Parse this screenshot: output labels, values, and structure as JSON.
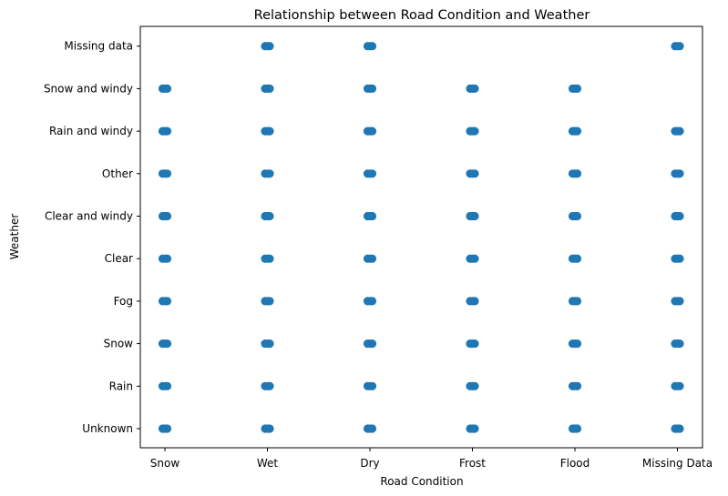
{
  "chart_data": {
    "type": "scatter",
    "title": "Relationship between Road Condition and Weather",
    "xlabel": "Road Condition",
    "ylabel": "Weather",
    "x_categories": [
      "Snow",
      "Wet",
      "Dry",
      "Frost",
      "Flood",
      "Missing Data"
    ],
    "y_categories": [
      "Unknown",
      "Rain",
      "Snow",
      "Fog",
      "Clear",
      "Clear and windy",
      "Other",
      "Rain and windy",
      "Snow and windy",
      "Missing data"
    ],
    "grid": false,
    "legend": "none",
    "marker_color": "#1f77b4",
    "points": [
      {
        "x": "Snow",
        "y": "Unknown"
      },
      {
        "x": "Snow",
        "y": "Rain"
      },
      {
        "x": "Snow",
        "y": "Snow"
      },
      {
        "x": "Snow",
        "y": "Fog"
      },
      {
        "x": "Snow",
        "y": "Clear"
      },
      {
        "x": "Snow",
        "y": "Clear and windy"
      },
      {
        "x": "Snow",
        "y": "Other"
      },
      {
        "x": "Snow",
        "y": "Rain and windy"
      },
      {
        "x": "Snow",
        "y": "Snow and windy"
      },
      {
        "x": "Wet",
        "y": "Unknown"
      },
      {
        "x": "Wet",
        "y": "Rain"
      },
      {
        "x": "Wet",
        "y": "Snow"
      },
      {
        "x": "Wet",
        "y": "Fog"
      },
      {
        "x": "Wet",
        "y": "Clear"
      },
      {
        "x": "Wet",
        "y": "Clear and windy"
      },
      {
        "x": "Wet",
        "y": "Other"
      },
      {
        "x": "Wet",
        "y": "Rain and windy"
      },
      {
        "x": "Wet",
        "y": "Snow and windy"
      },
      {
        "x": "Wet",
        "y": "Missing data"
      },
      {
        "x": "Dry",
        "y": "Unknown"
      },
      {
        "x": "Dry",
        "y": "Rain"
      },
      {
        "x": "Dry",
        "y": "Snow"
      },
      {
        "x": "Dry",
        "y": "Fog"
      },
      {
        "x": "Dry",
        "y": "Clear"
      },
      {
        "x": "Dry",
        "y": "Clear and windy"
      },
      {
        "x": "Dry",
        "y": "Other"
      },
      {
        "x": "Dry",
        "y": "Rain and windy"
      },
      {
        "x": "Dry",
        "y": "Snow and windy"
      },
      {
        "x": "Dry",
        "y": "Missing data"
      },
      {
        "x": "Frost",
        "y": "Unknown"
      },
      {
        "x": "Frost",
        "y": "Rain"
      },
      {
        "x": "Frost",
        "y": "Snow"
      },
      {
        "x": "Frost",
        "y": "Fog"
      },
      {
        "x": "Frost",
        "y": "Clear"
      },
      {
        "x": "Frost",
        "y": "Clear and windy"
      },
      {
        "x": "Frost",
        "y": "Other"
      },
      {
        "x": "Frost",
        "y": "Rain and windy"
      },
      {
        "x": "Frost",
        "y": "Snow and windy"
      },
      {
        "x": "Flood",
        "y": "Unknown"
      },
      {
        "x": "Flood",
        "y": "Rain"
      },
      {
        "x": "Flood",
        "y": "Snow"
      },
      {
        "x": "Flood",
        "y": "Fog"
      },
      {
        "x": "Flood",
        "y": "Clear"
      },
      {
        "x": "Flood",
        "y": "Clear and windy"
      },
      {
        "x": "Flood",
        "y": "Other"
      },
      {
        "x": "Flood",
        "y": "Rain and windy"
      },
      {
        "x": "Flood",
        "y": "Snow and windy"
      },
      {
        "x": "Missing Data",
        "y": "Unknown"
      },
      {
        "x": "Missing Data",
        "y": "Rain"
      },
      {
        "x": "Missing Data",
        "y": "Snow"
      },
      {
        "x": "Missing Data",
        "y": "Fog"
      },
      {
        "x": "Missing Data",
        "y": "Clear"
      },
      {
        "x": "Missing Data",
        "y": "Clear and windy"
      },
      {
        "x": "Missing Data",
        "y": "Other"
      },
      {
        "x": "Missing Data",
        "y": "Rain and windy"
      },
      {
        "x": "Missing Data",
        "y": "Missing data"
      }
    ]
  }
}
